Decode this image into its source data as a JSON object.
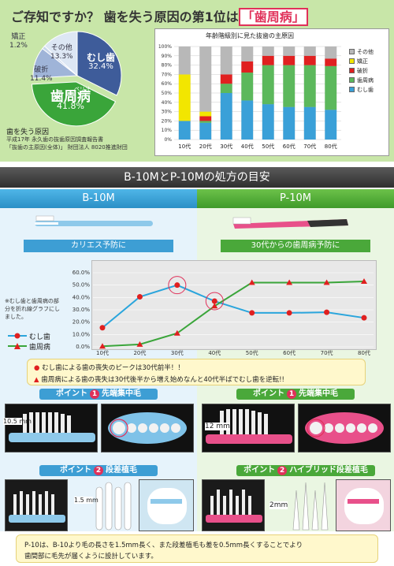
{
  "headline": {
    "part1": "ご存知ですか？ 歯を失う原因の第1位は",
    "part2": "「歯周病」"
  },
  "pie": {
    "slices": [
      {
        "label": "むし歯",
        "value": 32.4,
        "color": "#3e5c9a"
      },
      {
        "label": "歯周病",
        "value": 41.8,
        "color": "#3aa53a"
      },
      {
        "label": "破折",
        "value": 11.4,
        "color": "#9fb4d8"
      },
      {
        "label": "矯正",
        "value": 1.2,
        "color": "#c9d7ec"
      },
      {
        "label": "その他",
        "value": 13.3,
        "color": "#dde7f4"
      }
    ],
    "labels": {
      "mushiba": "むし歯",
      "mushiba_v": "32.4%",
      "shishu": "歯周病",
      "shishu_v": "41.8%",
      "perio": "ペリオ",
      "hasetsu": "破折",
      "hasetsu_v": "11.4%",
      "kyosei": "矯正",
      "kyosei_v": "1.2%",
      "sonota": "その他",
      "sonota_v": "13.3%"
    },
    "caption_title": "歯を失う原因",
    "caption_src1": "平成17年 永久歯の抜歯原因調査報告書",
    "caption_src2": "「抜歯の主原因(全体)」 財団法人 8020推進財団"
  },
  "chart_data": [
    {
      "type": "bar",
      "title": "年齢階級別に見た抜歯の主原因",
      "categories": [
        "10代",
        "20代",
        "30代",
        "40代",
        "50代",
        "60代",
        "70代",
        "80代"
      ],
      "ylim": [
        0,
        100
      ],
      "yticks": [
        "100%",
        "90%",
        "80%",
        "70%",
        "60%",
        "50%",
        "40%",
        "30%",
        "20%",
        "10%",
        "0%"
      ],
      "series": [
        {
          "name": "むし歯",
          "color": "#3aa0d8",
          "values": [
            20,
            18,
            50,
            42,
            38,
            35,
            35,
            32
          ]
        },
        {
          "name": "歯周病",
          "color": "#5cb85c",
          "values": [
            0,
            2,
            10,
            30,
            42,
            45,
            45,
            47
          ]
        },
        {
          "name": "破折",
          "color": "#e02020",
          "values": [
            0,
            5,
            10,
            12,
            10,
            10,
            10,
            8
          ]
        },
        {
          "name": "矯正",
          "color": "#f2e600",
          "values": [
            50,
            5,
            0,
            0,
            0,
            0,
            0,
            0
          ]
        },
        {
          "name": "その他",
          "color": "#b8b8b8",
          "values": [
            30,
            70,
            30,
            16,
            10,
            10,
            10,
            13
          ]
        }
      ]
    },
    {
      "type": "line",
      "categories": [
        "10代",
        "20代",
        "30代",
        "40代",
        "50代",
        "60代",
        "70代",
        "80代"
      ],
      "ylim": [
        0,
        60
      ],
      "yticks": [
        "60.0%",
        "50.0%",
        "40.0%",
        "30.0%",
        "20.0%",
        "10.0%",
        "0.0%"
      ],
      "series": [
        {
          "name": "むし歯",
          "color": "#2aa5dc",
          "values": [
            15.5,
            40.5,
            50.0,
            37.0,
            27.5,
            27.5,
            28.0,
            23.5
          ]
        },
        {
          "name": "歯周病",
          "color": "#3aa53a",
          "values": [
            0.5,
            2.0,
            11.0,
            33.0,
            52.0,
            52.0,
            52.0,
            53.0
          ]
        }
      ]
    }
  ],
  "middle": {
    "title": "B-10MとP-10Mの処方の目安",
    "col_left": "B-10M",
    "col_right": "P-10M",
    "sub_left": "カリエス予防に",
    "sub_right": "30代からの歯周病予防に",
    "note": "※むし歯と歯周病の部分を折れ線グラフにしました。",
    "legend_caries": "むし歯",
    "legend_perio": "歯周病",
    "summary1": "むし歯による歯の喪失のピークは30代前半！！",
    "summary2": "歯周病による歯の喪失は30代後半から増え始めなんと40代半ばでむし歯を逆転!!",
    "point1_left": "先端集中毛",
    "point1_right": "先端集中毛",
    "point2_left": "段差植毛",
    "point2_right": "ハイブリッド段差植毛",
    "point_word": "ポイント",
    "num1": "1",
    "num2": "2",
    "mm_left1": "10.5 mm",
    "mm_right1": "12 mm",
    "mm_left2": "1.5 mm",
    "mm_right2": "2mm",
    "footer1": "P-10は、B-10より毛の長さを1.5mm長く、また段差植毛も差を0.5mm長くすることでより",
    "footer2": "歯間部に毛先が届くように設計しています。"
  }
}
